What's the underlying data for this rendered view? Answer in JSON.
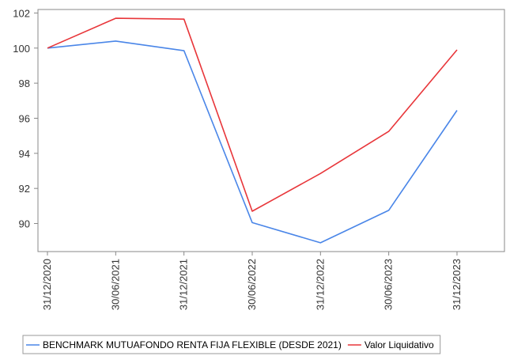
{
  "chart_data": {
    "type": "line",
    "title": "",
    "xlabel": "",
    "ylabel": "",
    "x": [
      "31/12/2020",
      "30/06/2021",
      "31/12/2021",
      "30/06/2022",
      "31/12/2022",
      "30/06/2023",
      "31/12/2023"
    ],
    "ylim": [
      88.4,
      102.2
    ],
    "yticks": [
      90,
      92,
      94,
      96,
      98,
      100,
      102
    ],
    "grid": false,
    "legend_position": "bottom",
    "series": [
      {
        "name": "BENCHMARK MUTUAFONDO RENTA FIJA FLEXIBLE (DESDE 2021)",
        "color": "#4a86e8",
        "points": [
          {
            "x": "31/12/2020",
            "y": 100.0
          },
          {
            "x": "30/06/2021",
            "y": 100.4
          },
          {
            "x": "31/12/2021",
            "y": 99.85
          },
          {
            "x": "30/06/2022",
            "y": 90.05
          },
          {
            "x": "31/12/2022",
            "y": 88.9
          },
          {
            "x": "30/06/2023",
            "y": 90.75
          },
          {
            "x": "31/12/2023",
            "y": 96.45
          }
        ]
      },
      {
        "name": "Valor Liquidativo",
        "color": "#e8363a",
        "points": [
          {
            "x": "31/12/2020",
            "y": 100.0
          },
          {
            "x": "30/06/2021",
            "y": 101.7
          },
          {
            "x": "31/12/2021",
            "y": 101.65
          },
          {
            "x": "30/06/2022",
            "y": 90.7
          },
          {
            "x": "31/12/2022",
            "y": 92.85
          },
          {
            "x": "30/06/2023",
            "y": 95.25
          },
          {
            "x": "31/12/2023",
            "y": 99.9
          }
        ]
      }
    ]
  }
}
